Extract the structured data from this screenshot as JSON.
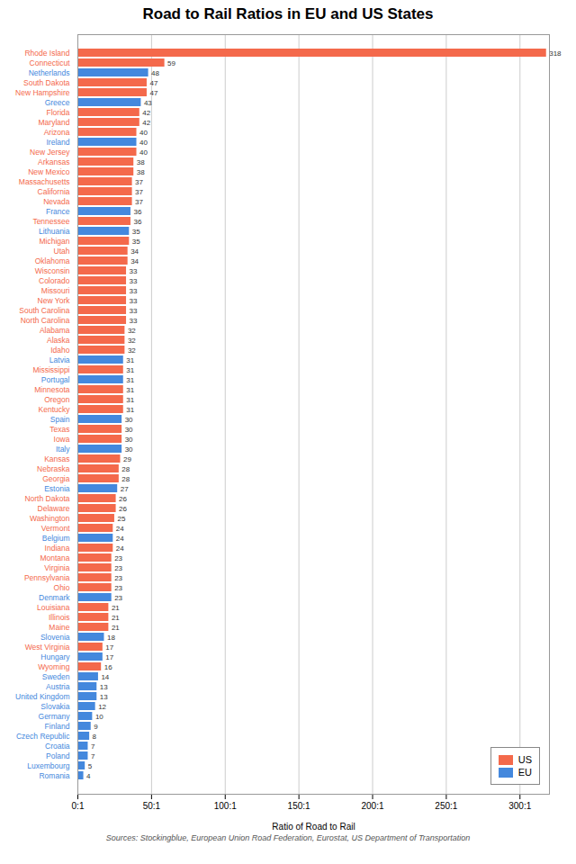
{
  "chart_data": {
    "type": "bar",
    "orientation": "horizontal",
    "title": "Road to Rail Ratios in EU and US States",
    "xlabel": "Ratio of Road to Rail",
    "annotations": [
      "Sources: Stockingblue, European Union Road Federation, Eurostat, US Department of Transportation"
    ],
    "categories": [
      "Rhode Island",
      "Connecticut",
      "Netherlands",
      "South Dakota",
      "New Hampshire",
      "Greece",
      "Florida",
      "Maryland",
      "Arizona",
      "Ireland",
      "New Jersey",
      "Arkansas",
      "New Mexico",
      "Massachusetts",
      "California",
      "Nevada",
      "France",
      "Tennessee",
      "Lithuania",
      "Michigan",
      "Utah",
      "Oklahoma",
      "Wisconsin",
      "Colorado",
      "Missouri",
      "New York",
      "South Carolina",
      "North Carolina",
      "Alabama",
      "Alaska",
      "Idaho",
      "Latvia",
      "Mississippi",
      "Portugal",
      "Minnesota",
      "Oregon",
      "Kentucky",
      "Spain",
      "Texas",
      "Iowa",
      "Italy",
      "Kansas",
      "Nebraska",
      "Georgia",
      "Estonia",
      "North Dakota",
      "Delaware",
      "Washington",
      "Vermont",
      "Belgium",
      "Indiana",
      "Montana",
      "Virginia",
      "Pennsylvania",
      "Ohio",
      "Denmark",
      "Louisiana",
      "Illinois",
      "Maine",
      "Slovenia",
      "West Virginia",
      "Hungary",
      "Wyoming",
      "Sweden",
      "Austria",
      "United Kingdom",
      "Slovakia",
      "Germany",
      "Finland",
      "Czech Republic",
      "Croatia",
      "Poland",
      "Luxembourg",
      "Romania"
    ],
    "series": [
      {
        "name": "US",
        "color": "#F4694B",
        "values": [
          318,
          59,
          null,
          47,
          47,
          null,
          42,
          42,
          40,
          null,
          40,
          38,
          38,
          37,
          37,
          37,
          null,
          36,
          null,
          35,
          34,
          34,
          33,
          33,
          33,
          33,
          33,
          33,
          32,
          32,
          32,
          null,
          31,
          null,
          31,
          31,
          31,
          null,
          30,
          30,
          null,
          29,
          28,
          28,
          null,
          26,
          26,
          25,
          24,
          null,
          24,
          23,
          23,
          23,
          23,
          null,
          21,
          21,
          21,
          null,
          17,
          null,
          16,
          null,
          null,
          null,
          null,
          null,
          null,
          null,
          null,
          null,
          null,
          null
        ]
      },
      {
        "name": "EU",
        "color": "#4488DD",
        "values": [
          null,
          null,
          48,
          null,
          null,
          43,
          null,
          null,
          null,
          40,
          null,
          null,
          null,
          null,
          null,
          null,
          36,
          null,
          35,
          null,
          null,
          null,
          null,
          null,
          null,
          null,
          null,
          null,
          null,
          null,
          null,
          31,
          null,
          31,
          null,
          null,
          null,
          30,
          null,
          null,
          30,
          null,
          null,
          null,
          27,
          null,
          null,
          null,
          null,
          24,
          null,
          null,
          null,
          null,
          null,
          23,
          null,
          null,
          null,
          18,
          null,
          17,
          null,
          14,
          13,
          13,
          12,
          10,
          9,
          8,
          7,
          7,
          5,
          4
        ]
      }
    ],
    "xlim": [
      0,
      320
    ],
    "xticks": [
      {
        "value": 0,
        "label": "0:1"
      },
      {
        "value": 50,
        "label": "50:1"
      },
      {
        "value": 100,
        "label": "100:1"
      },
      {
        "value": 150,
        "label": "150:1"
      },
      {
        "value": 200,
        "label": "200:1"
      },
      {
        "value": 250,
        "label": "250:1"
      },
      {
        "value": 300,
        "label": "300:1"
      }
    ],
    "grid": true,
    "legend": "lower right",
    "data_labels": true
  }
}
